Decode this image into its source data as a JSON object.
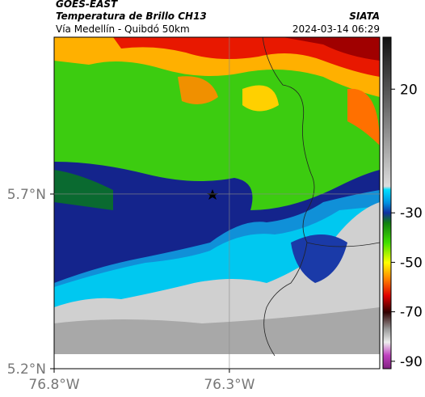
{
  "header": {
    "title": "GOES-EAST",
    "subtitle": "Temperatura de Brillo CH13",
    "region": "Vía Medellín - Quibdó 50km",
    "source": "SIATA",
    "timestamp": "2024-03-14 06:29"
  },
  "map": {
    "lat_range": [
      5.2,
      6.149
    ],
    "lon_range": [
      -76.8,
      -75.871
    ],
    "lat_ticks": [
      {
        "value": 5.7,
        "label": "5.7°N"
      },
      {
        "value": 5.2,
        "label": "5.2°N"
      }
    ],
    "lon_ticks": [
      {
        "value": -76.8,
        "label": "76.8°W"
      },
      {
        "value": -76.3,
        "label": "76.3°W"
      }
    ]
  },
  "colorbar": {
    "range": [
      -93,
      41
    ],
    "ticks": [
      20,
      -30,
      -50,
      -70,
      -90
    ]
  }
}
